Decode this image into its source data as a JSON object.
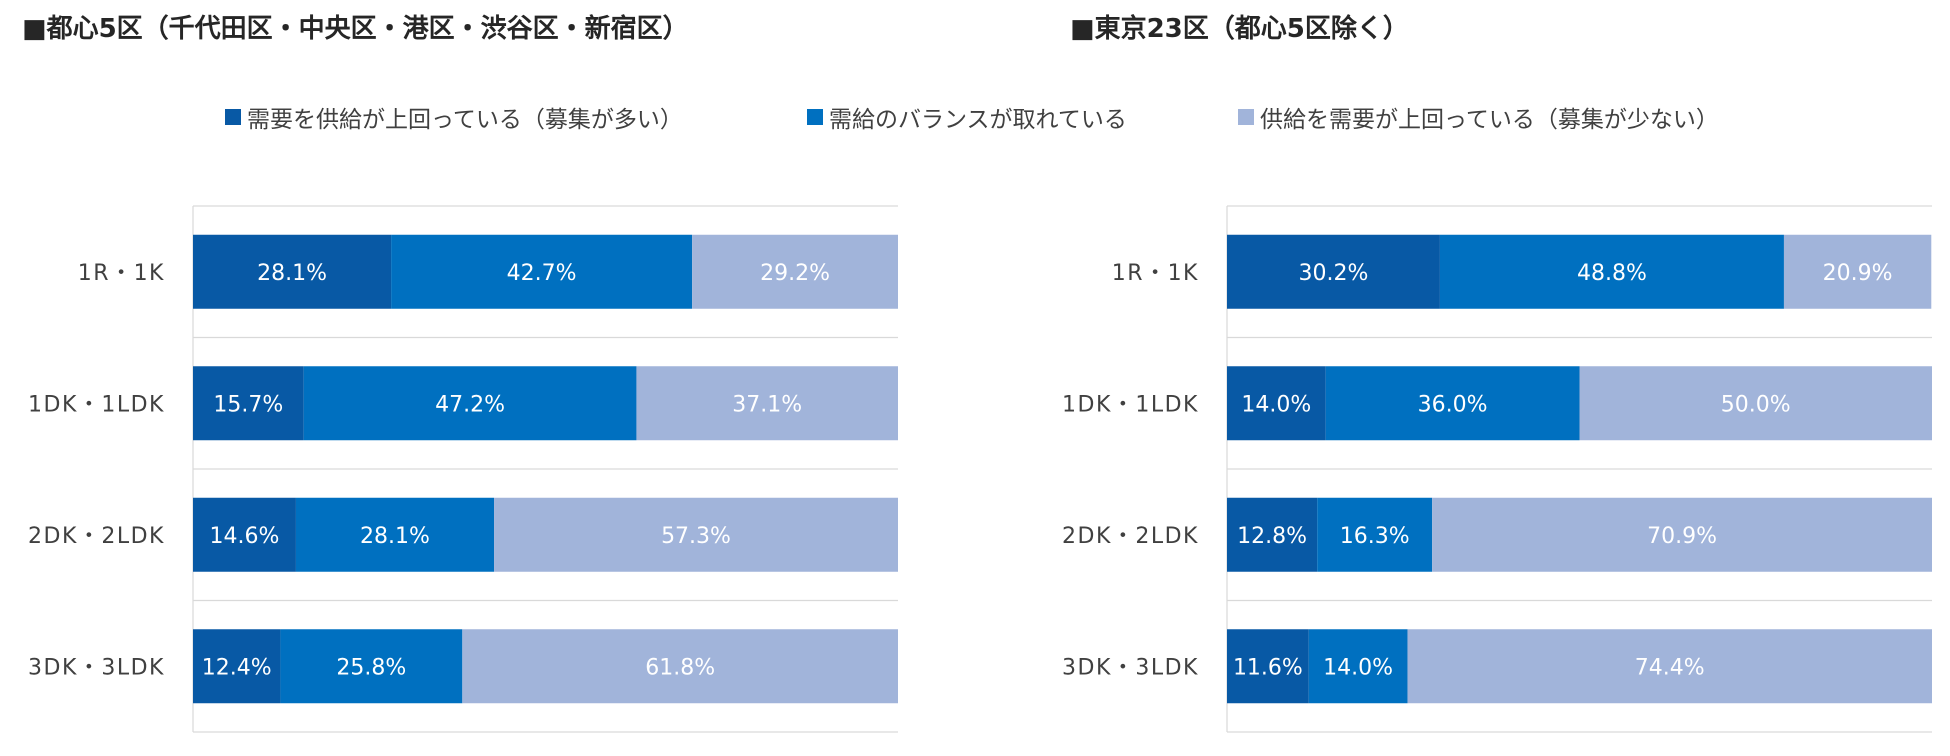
{
  "colors": {
    "dark": "#0859A5",
    "mid": "#0070C0",
    "light": "#A1B4DA",
    "grid": "#D9D9D9",
    "label_text": "#ffffff",
    "category_text": "#404040"
  },
  "legend": [
    {
      "label": "需要を供給が上回っている（募集が多い）",
      "color": "#0859A5"
    },
    {
      "label": "需給のバランスが取れている",
      "color": "#0070C0"
    },
    {
      "label": "供給を需要が上回っている（募集が少ない）",
      "color": "#A1B4DA"
    }
  ],
  "chart_data": [
    {
      "type": "bar",
      "orientation": "horizontal",
      "stacked": true,
      "title": "■都心5区（千代田区・中央区・港区・渋谷区・新宿区）",
      "categories": [
        "1R・1K",
        "1DK・1LDK",
        "2DK・2LDK",
        "3DK・3LDK"
      ],
      "series": [
        {
          "name": "需要を供給が上回っている（募集が多い）",
          "values": [
            28.1,
            15.7,
            14.6,
            12.4
          ],
          "labels": [
            "28.1%",
            "15.7%",
            "14.6%",
            "12.4%"
          ]
        },
        {
          "name": "需給のバランスが取れている",
          "values": [
            42.7,
            47.2,
            28.1,
            25.8
          ],
          "labels": [
            "42.7%",
            "47.2%",
            "28.1%",
            "25.8%"
          ]
        },
        {
          "name": "供給を需要が上回っている（募集が少ない）",
          "values": [
            29.2,
            37.1,
            57.3,
            61.8
          ],
          "labels": [
            "29.2%",
            "37.1%",
            "57.3%",
            "61.8%"
          ]
        }
      ],
      "xlim": [
        0,
        100
      ],
      "legend_position": "top"
    },
    {
      "type": "bar",
      "orientation": "horizontal",
      "stacked": true,
      "title": "■東京23区（都心5区除く）",
      "categories": [
        "1R・1K",
        "1DK・1LDK",
        "2DK・2LDK",
        "3DK・3LDK"
      ],
      "series": [
        {
          "name": "需要を供給が上回っている（募集が多い）",
          "values": [
            30.2,
            14.0,
            12.8,
            11.6
          ],
          "labels": [
            "30.2%",
            "14.0%",
            "12.8%",
            "11.6%"
          ]
        },
        {
          "name": "需給のバランスが取れている",
          "values": [
            48.8,
            36.0,
            16.3,
            14.0
          ],
          "labels": [
            "48.8%",
            "36.0%",
            "16.3%",
            "14.0%"
          ]
        },
        {
          "name": "供給を需要が上回っている（募集が少ない）",
          "values": [
            20.9,
            50.0,
            70.9,
            74.4
          ],
          "labels": [
            "20.9%",
            "50.0%",
            "70.9%",
            "74.4%"
          ]
        }
      ],
      "xlim": [
        0,
        100
      ],
      "legend_position": "top"
    }
  ]
}
